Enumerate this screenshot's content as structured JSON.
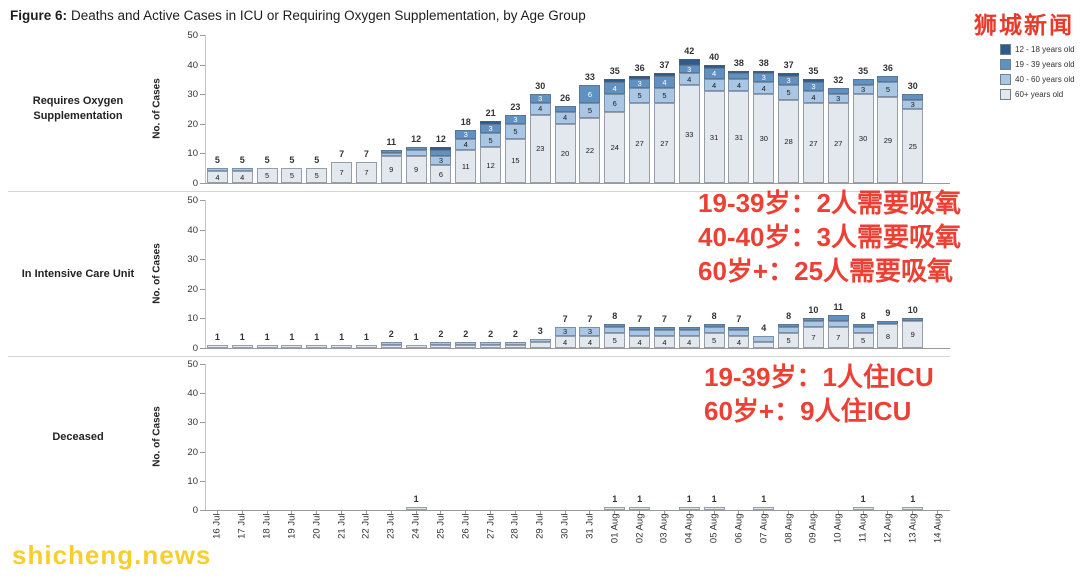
{
  "title": {
    "prefix": "Figure 6:",
    "text": "Deaths and Active Cases in ICU or Requiring Oxygen Supplementation, by Age Group"
  },
  "watermarks": {
    "top_right": "狮城新闻",
    "bottom_left": "shicheng.news"
  },
  "annotations": {
    "oxygen_lines": [
      "19-39岁：2人需要吸氧",
      "40-40岁：3人需要吸氧",
      "60岁+：25人需要吸氧"
    ],
    "icu_lines": [
      "19-39岁：1人住ICU",
      "60岁+：9人住ICU"
    ],
    "color": "#e92618"
  },
  "legend": {
    "position": "top-right",
    "items": [
      {
        "label": "12 - 18 years old",
        "color": "#2e5c8a"
      },
      {
        "label": "19 - 39 years old",
        "color": "#6191c1"
      },
      {
        "label": "40 - 60 years old",
        "color": "#a9c7e4"
      },
      {
        "label": "60+ years old",
        "color": "#e3e7ee"
      }
    ]
  },
  "axes": {
    "y_label": "No. of Cases",
    "y_ticks": [
      0,
      10,
      20,
      30,
      40,
      50
    ],
    "ylim": [
      0,
      50
    ],
    "grid": false
  },
  "chart_data": {
    "type": "bar",
    "stacked": true,
    "legend_position": "top-right",
    "categories": [
      "16 Jul",
      "17 Jul",
      "18 Jul",
      "19 Jul",
      "20 Jul",
      "21 Jul",
      "22 Jul",
      "23 Jul",
      "24 Jul",
      "25 Jul",
      "26 Jul",
      "27 Jul",
      "28 Jul",
      "29 Jul",
      "30 Jul",
      "31 Jul",
      "01 Aug",
      "02 Aug",
      "03 Aug",
      "04 Aug",
      "05 Aug",
      "06 Aug",
      "07 Aug",
      "08 Aug",
      "09 Aug",
      "10 Aug",
      "11 Aug",
      "12 Aug",
      "13 Aug",
      "14 Aug"
    ],
    "panels": [
      {
        "row_label": "Requires Oxygen Supplementation",
        "totals": [
          5,
          5,
          5,
          5,
          5,
          7,
          7,
          11,
          12,
          12,
          18,
          21,
          23,
          30,
          26,
          33,
          35,
          36,
          37,
          42,
          40,
          38,
          38,
          37,
          35,
          32,
          35,
          36,
          30,
          0
        ],
        "series": [
          {
            "name": "12 - 18 years old",
            "values": [
              0,
              0,
              0,
              0,
              0,
              0,
              0,
              0,
              0,
              1,
              0,
              1,
              0,
              0,
              0,
              0,
              1,
              1,
              1,
              2,
              1,
              1,
              1,
              1,
              1,
              0,
              0,
              0,
              0,
              0
            ]
          },
          {
            "name": "19 - 39 years old",
            "values": [
              0,
              0,
              0,
              0,
              0,
              0,
              0,
              1,
              1,
              2,
              3,
              3,
              3,
              3,
              2,
              6,
              4,
              3,
              4,
              3,
              4,
              2,
              3,
              3,
              3,
              2,
              2,
              2,
              2,
              0
            ]
          },
          {
            "name": "40 - 60 years old",
            "values": [
              1,
              1,
              0,
              0,
              0,
              0,
              0,
              1,
              2,
              3,
              4,
              5,
              5,
              4,
              4,
              5,
              6,
              5,
              5,
              4,
              4,
              4,
              4,
              5,
              4,
              3,
              3,
              5,
              3,
              0
            ]
          },
          {
            "name": "60+ years old",
            "values": [
              4,
              4,
              5,
              5,
              5,
              7,
              7,
              9,
              9,
              6,
              11,
              12,
              15,
              23,
              20,
              22,
              24,
              27,
              27,
              33,
              31,
              31,
              30,
              28,
              27,
              27,
              30,
              29,
              25,
              0
            ]
          }
        ]
      },
      {
        "row_label": "In Intensive Care Unit",
        "totals": [
          1,
          1,
          1,
          1,
          1,
          1,
          1,
          2,
          1,
          2,
          2,
          2,
          2,
          3,
          7,
          7,
          8,
          7,
          7,
          7,
          8,
          7,
          4,
          8,
          10,
          11,
          8,
          9,
          10,
          0
        ],
        "series": [
          {
            "name": "12 - 18 years old",
            "values": [
              0,
              0,
              0,
              0,
              0,
              0,
              0,
              0,
              0,
              0,
              0,
              0,
              0,
              0,
              0,
              0,
              0,
              0,
              0,
              0,
              0,
              0,
              0,
              0,
              0,
              0,
              0,
              0,
              0,
              0
            ]
          },
          {
            "name": "19 - 39 years old",
            "values": [
              0,
              0,
              0,
              0,
              0,
              0,
              0,
              0,
              0,
              0,
              0,
              0,
              0,
              0,
              0,
              0,
              1,
              1,
              1,
              1,
              1,
              1,
              0,
              1,
              1,
              2,
              1,
              1,
              1,
              0
            ]
          },
          {
            "name": "40 - 60 years old",
            "values": [
              0,
              0,
              0,
              0,
              0,
              0,
              0,
              1,
              0,
              1,
              1,
              1,
              1,
              1,
              3,
              3,
              2,
              2,
              2,
              2,
              2,
              2,
              2,
              2,
              2,
              2,
              2,
              0,
              0,
              0
            ]
          },
          {
            "name": "60+ years old",
            "values": [
              1,
              1,
              1,
              1,
              1,
              1,
              1,
              1,
              1,
              1,
              1,
              1,
              1,
              2,
              4,
              4,
              5,
              4,
              4,
              4,
              5,
              4,
              2,
              5,
              7,
              7,
              5,
              8,
              9,
              0
            ]
          }
        ]
      },
      {
        "row_label": "Deceased",
        "totals": [
          0,
          0,
          0,
          0,
          0,
          0,
          0,
          0,
          1,
          0,
          0,
          0,
          0,
          0,
          0,
          0,
          1,
          1,
          0,
          1,
          1,
          0,
          1,
          0,
          0,
          0,
          1,
          0,
          1,
          0
        ],
        "series": [
          {
            "name": "12 - 18 years old",
            "values": [
              0,
              0,
              0,
              0,
              0,
              0,
              0,
              0,
              0,
              0,
              0,
              0,
              0,
              0,
              0,
              0,
              0,
              0,
              0,
              0,
              0,
              0,
              0,
              0,
              0,
              0,
              0,
              0,
              0,
              0
            ]
          },
          {
            "name": "19 - 39 years old",
            "values": [
              0,
              0,
              0,
              0,
              0,
              0,
              0,
              0,
              0,
              0,
              0,
              0,
              0,
              0,
              0,
              0,
              0,
              0,
              0,
              0,
              0,
              0,
              0,
              0,
              0,
              0,
              0,
              0,
              0,
              0
            ]
          },
          {
            "name": "40 - 60 years old",
            "values": [
              0,
              0,
              0,
              0,
              0,
              0,
              0,
              0,
              0,
              0,
              0,
              0,
              0,
              0,
              0,
              0,
              0,
              0,
              0,
              0,
              0,
              0,
              0,
              0,
              0,
              0,
              0,
              0,
              0,
              0
            ]
          },
          {
            "name": "60+ years old",
            "values": [
              0,
              0,
              0,
              0,
              0,
              0,
              0,
              0,
              1,
              0,
              0,
              0,
              0,
              0,
              0,
              0,
              1,
              1,
              0,
              1,
              1,
              0,
              1,
              0,
              0,
              0,
              1,
              0,
              1,
              0
            ]
          }
        ]
      }
    ]
  }
}
